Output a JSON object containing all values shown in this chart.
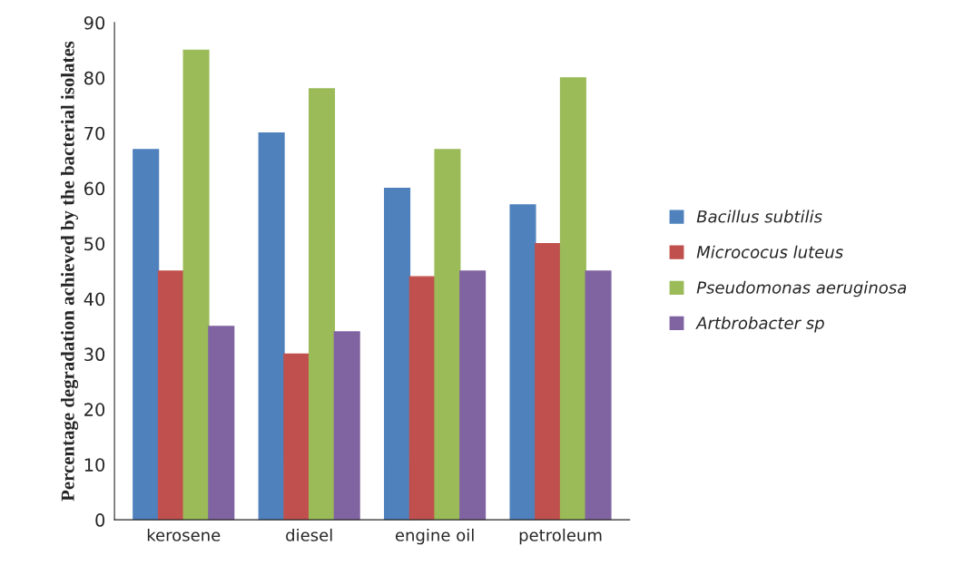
{
  "chart_data": {
    "type": "bar",
    "ylabel": "Percentage degradation achieved by the bacterial isolates",
    "categories": [
      "kerosene",
      "diesel",
      "engine oil",
      "petroleum"
    ],
    "series": [
      {
        "name": "Bacillus subtilis",
        "color": "#4f81bd",
        "values": [
          67,
          70,
          60,
          57
        ]
      },
      {
        "name": "Micrococus luteus",
        "color": "#c0504d",
        "values": [
          45,
          30,
          44,
          50
        ]
      },
      {
        "name": "Pseudomonas aeruginosa",
        "color": "#9bbb59",
        "values": [
          85,
          78,
          67,
          80
        ]
      },
      {
        "name": "Artbrobacter sp",
        "color": "#8064a2",
        "values": [
          35,
          34,
          45,
          45
        ]
      }
    ],
    "ylim": [
      0,
      90
    ],
    "yticks": [
      0,
      10,
      20,
      30,
      40,
      50,
      60,
      70,
      80,
      90
    ],
    "grid": false,
    "legend": "right"
  }
}
